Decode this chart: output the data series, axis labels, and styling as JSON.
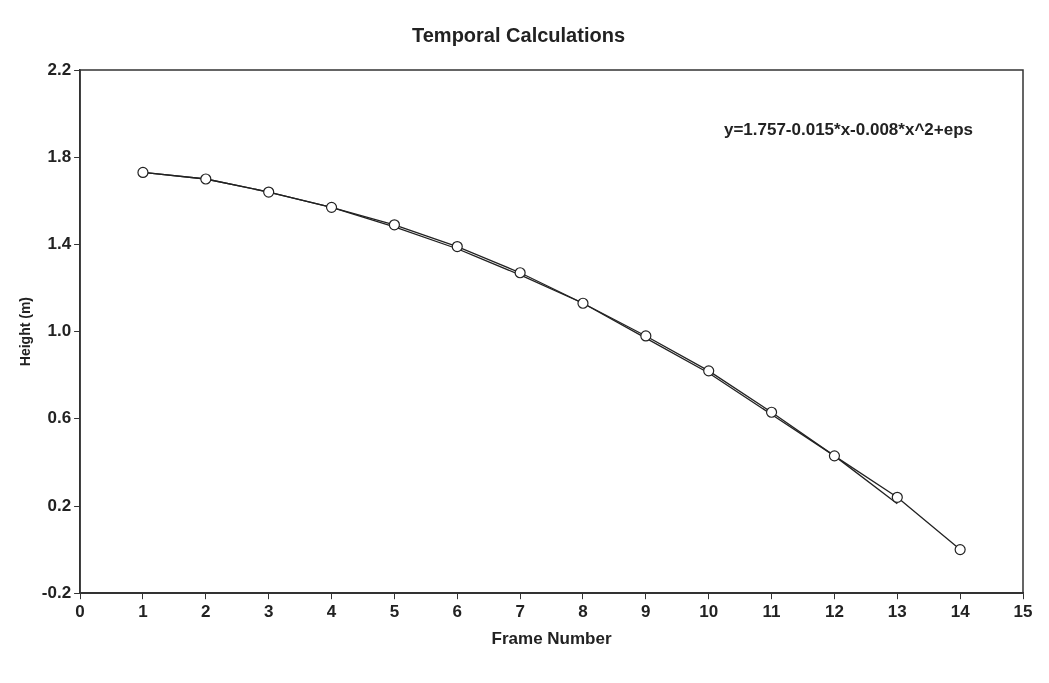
{
  "chart_data": {
    "type": "line",
    "title": "Temporal Calculations",
    "xlabel": "Frame Number",
    "ylabel": "Height (m)",
    "x": [
      1,
      2,
      3,
      4,
      5,
      6,
      7,
      8,
      9,
      10,
      11,
      12,
      13,
      14
    ],
    "series": [
      {
        "color": "#222222",
        "marker": "circle",
        "values": [
          1.73,
          1.7,
          1.64,
          1.57,
          1.49,
          1.39,
          1.27,
          1.13,
          0.98,
          0.82,
          0.63,
          0.43,
          0.24,
          0.0
        ]
      },
      {
        "color": "#222222",
        "marker": "none",
        "x": [
          1,
          2,
          3,
          4,
          5,
          6,
          7,
          8,
          9,
          10,
          11,
          12,
          13
        ],
        "values": [
          1.73,
          1.7,
          1.64,
          1.57,
          1.48,
          1.38,
          1.26,
          1.13,
          0.97,
          0.81,
          0.62,
          0.43,
          0.21
        ]
      }
    ],
    "xlim": [
      0,
      15
    ],
    "xticks": [
      0,
      1,
      2,
      3,
      4,
      5,
      6,
      7,
      8,
      9,
      10,
      11,
      12,
      13,
      14,
      15
    ],
    "ylim": [
      -0.2,
      2.2
    ],
    "yticks": [
      {
        "value": -0.2,
        "label": "-0.2"
      },
      {
        "value": 0.2,
        "label": "0.2"
      },
      {
        "value": 0.6,
        "label": "0.6"
      },
      {
        "value": 1.0,
        "label": "1.0"
      },
      {
        "value": 1.4,
        "label": "1.4"
      },
      {
        "value": 1.8,
        "label": "1.8"
      },
      {
        "value": 2.2,
        "label": "2.2"
      }
    ],
    "annotations": [
      "y=1.757-0.015*x-0.008*x^2+eps"
    ],
    "grid": false,
    "legend": false
  }
}
